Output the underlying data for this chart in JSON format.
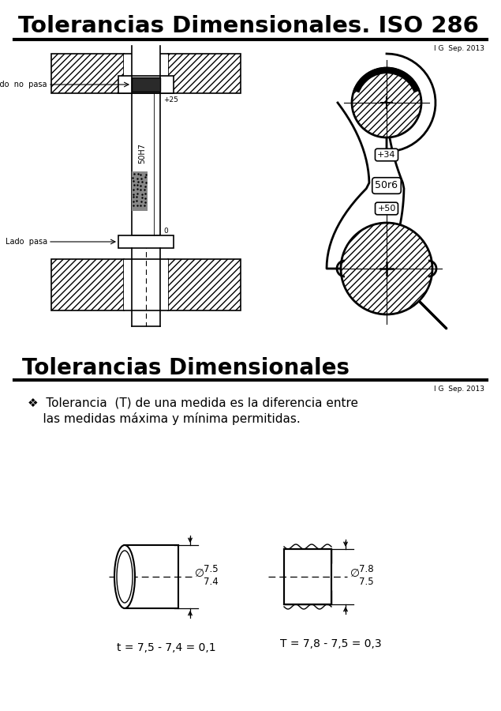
{
  "title1": "Tolerancias Dimensionales. ISO 286",
  "title2": "Tolerancias Dimensionales",
  "subtitle": "I G  Sep. 2013",
  "bullet_text1": "❖  Tolerancia  (T) de una medida es la diferencia entre",
  "bullet_text2": "    las medidas máxima y mínima permitidas.",
  "formula1": "t = 7,5 - 7,4 = 0,1",
  "formula2": "T = 7,8 - 7,5 = 0,3",
  "bg_color": "#ffffff",
  "line_color": "#000000",
  "label_50H7": "50H7",
  "label_plus25": "+25",
  "label_0": "0",
  "label_lado_no_pasa": "Lado  no  pasa",
  "label_lado_pasa": "Lado  pasa",
  "label_50r6": "50r6",
  "label_plus34": "+34",
  "label_plus50": "+50",
  "dim1_top": "7.5",
  "dim1_bot": "7.4",
  "dim2_top": "7.8",
  "dim2_bot": "7.5"
}
